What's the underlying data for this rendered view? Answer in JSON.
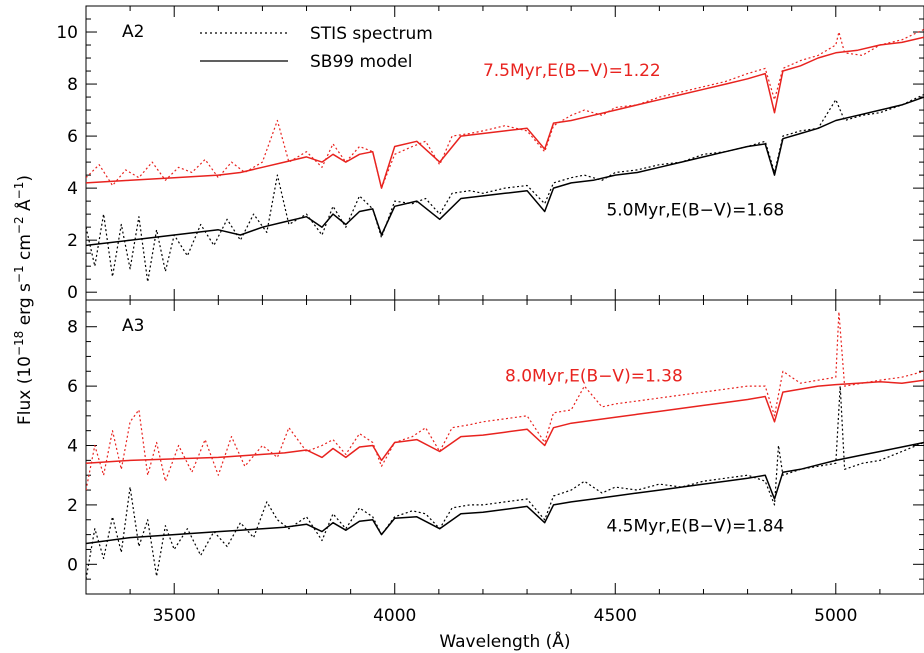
{
  "figure": {
    "xlabel": "Wavelength (Å)",
    "ylabel_parts": {
      "pre": "Flux (10",
      "exp1": "−18",
      "mid1": " erg s",
      "exp2": "−1",
      "mid2": " cm",
      "exp3": "−2",
      "mid3": " Å",
      "exp4": "−1",
      "post": ")"
    },
    "legend": {
      "observed": "STIS spectrum",
      "model": "SB99 model"
    }
  },
  "colors": {
    "red": "#e8231f",
    "black": "#000000"
  },
  "chart_data": [
    {
      "type": "line",
      "panel_label": "A2",
      "xlim": [
        3300,
        5200
      ],
      "ylim": [
        -0.3,
        11
      ],
      "x_ticks": [
        3500,
        4000,
        4500,
        5000
      ],
      "y_ticks": [
        0,
        2,
        4,
        6,
        8,
        10
      ],
      "series": [
        {
          "name": "STIS spectrum",
          "color": "red",
          "style": "dotted",
          "x": [
            3300,
            3330,
            3360,
            3390,
            3420,
            3450,
            3480,
            3510,
            3540,
            3570,
            3600,
            3630,
            3660,
            3700,
            3734,
            3760,
            3800,
            3835,
            3860,
            3889,
            3920,
            3950,
            3970,
            4000,
            4040,
            4070,
            4102,
            4130,
            4170,
            4200,
            4250,
            4300,
            4340,
            4360,
            4400,
            4430,
            4470,
            4500,
            4550,
            4600,
            4650,
            4700,
            4750,
            4800,
            4840,
            4861,
            4880,
            4920,
            4960,
            5000,
            5007,
            5020,
            5060,
            5100,
            5150,
            5200
          ],
          "y": [
            4.4,
            4.9,
            4.1,
            4.7,
            4.4,
            5.0,
            4.3,
            4.8,
            4.6,
            5.1,
            4.4,
            5.0,
            4.6,
            5.0,
            6.6,
            5.0,
            5.4,
            4.8,
            5.7,
            5.0,
            5.6,
            5.4,
            4.0,
            5.3,
            5.6,
            5.8,
            4.9,
            6.0,
            6.1,
            6.2,
            6.4,
            6.2,
            5.4,
            6.4,
            6.8,
            7.0,
            6.8,
            7.1,
            7.2,
            7.5,
            7.7,
            7.9,
            8.1,
            8.4,
            8.6,
            7.4,
            8.6,
            8.9,
            9.1,
            9.5,
            10.0,
            9.2,
            9.1,
            9.5,
            9.7,
            10.1
          ]
        },
        {
          "name": "SB99 model",
          "label": "7.5Myr,E(B−V)=1.22",
          "color": "red",
          "style": "solid",
          "x": [
            3300,
            3400,
            3500,
            3600,
            3650,
            3700,
            3750,
            3800,
            3835,
            3860,
            3889,
            3920,
            3950,
            3970,
            4000,
            4050,
            4102,
            4150,
            4200,
            4250,
            4300,
            4340,
            4360,
            4400,
            4450,
            4500,
            4550,
            4600,
            4650,
            4700,
            4750,
            4800,
            4840,
            4861,
            4880,
            4920,
            4960,
            5000,
            5050,
            5100,
            5150,
            5200
          ],
          "y": [
            4.2,
            4.3,
            4.4,
            4.5,
            4.6,
            4.8,
            5.0,
            5.2,
            5.0,
            5.3,
            5.0,
            5.3,
            5.4,
            4.0,
            5.6,
            5.8,
            5.0,
            6.0,
            6.1,
            6.2,
            6.3,
            5.5,
            6.5,
            6.6,
            6.8,
            7.0,
            7.2,
            7.4,
            7.6,
            7.8,
            8.0,
            8.2,
            8.4,
            6.9,
            8.5,
            8.7,
            9.0,
            9.2,
            9.3,
            9.5,
            9.6,
            9.8
          ]
        },
        {
          "name": "STIS spectrum",
          "color": "black",
          "style": "dotted",
          "x": [
            3300,
            3320,
            3340,
            3360,
            3380,
            3400,
            3420,
            3440,
            3460,
            3480,
            3500,
            3530,
            3560,
            3590,
            3620,
            3650,
            3680,
            3710,
            3734,
            3760,
            3800,
            3835,
            3860,
            3889,
            3920,
            3950,
            3970,
            4000,
            4040,
            4070,
            4102,
            4130,
            4170,
            4200,
            4250,
            4300,
            4340,
            4360,
            4400,
            4430,
            4470,
            4500,
            4550,
            4600,
            4650,
            4700,
            4750,
            4800,
            4840,
            4861,
            4880,
            4920,
            4960,
            5000,
            5020,
            5060,
            5100,
            5150,
            5200
          ],
          "y": [
            2.5,
            1.0,
            3.0,
            0.6,
            2.6,
            0.9,
            2.9,
            0.4,
            2.4,
            0.8,
            2.2,
            1.4,
            2.6,
            1.8,
            2.8,
            2.0,
            3.0,
            2.3,
            4.5,
            2.6,
            3.0,
            2.2,
            3.3,
            2.5,
            3.7,
            3.2,
            2.1,
            3.5,
            3.4,
            3.6,
            3.0,
            3.8,
            3.9,
            3.8,
            4.0,
            4.1,
            3.4,
            4.2,
            4.4,
            4.5,
            4.3,
            4.6,
            4.7,
            4.9,
            5.0,
            5.3,
            5.4,
            5.6,
            5.8,
            4.6,
            6.0,
            6.2,
            6.3,
            7.4,
            6.6,
            6.8,
            6.9,
            7.2,
            7.6
          ]
        },
        {
          "name": "SB99 model",
          "label": "5.0Myr,E(B−V)=1.68",
          "color": "black",
          "style": "solid",
          "x": [
            3300,
            3400,
            3500,
            3600,
            3650,
            3700,
            3750,
            3800,
            3835,
            3860,
            3889,
            3920,
            3950,
            3970,
            4000,
            4050,
            4102,
            4150,
            4200,
            4250,
            4300,
            4340,
            4360,
            4400,
            4450,
            4500,
            4550,
            4600,
            4650,
            4700,
            4750,
            4800,
            4840,
            4861,
            4880,
            4920,
            4960,
            5000,
            5050,
            5100,
            5150,
            5200
          ],
          "y": [
            1.8,
            2.0,
            2.2,
            2.4,
            2.2,
            2.5,
            2.7,
            2.9,
            2.5,
            3.0,
            2.6,
            3.1,
            3.2,
            2.2,
            3.3,
            3.5,
            2.8,
            3.6,
            3.7,
            3.8,
            3.9,
            3.1,
            4.0,
            4.2,
            4.3,
            4.5,
            4.6,
            4.8,
            5.0,
            5.2,
            5.4,
            5.6,
            5.7,
            4.5,
            5.9,
            6.1,
            6.3,
            6.6,
            6.8,
            7.0,
            7.2,
            7.5
          ]
        }
      ],
      "annotations": [
        {
          "text": "7.5Myr,E(B−V)=1.22",
          "color": "red",
          "at": [
            4200,
            8.3
          ]
        },
        {
          "text": "5.0Myr,E(B−V)=1.68",
          "color": "black",
          "at": [
            4480,
            2.95
          ]
        }
      ]
    },
    {
      "type": "line",
      "panel_label": "A3",
      "xlim": [
        3300,
        5200
      ],
      "ylim": [
        -1,
        8.9
      ],
      "x_ticks": [
        3500,
        4000,
        4500,
        5000
      ],
      "y_ticks": [
        0,
        2,
        4,
        6,
        8
      ],
      "series": [
        {
          "name": "STIS spectrum",
          "color": "red",
          "style": "dotted",
          "x": [
            3300,
            3320,
            3340,
            3360,
            3380,
            3400,
            3420,
            3440,
            3460,
            3480,
            3510,
            3540,
            3570,
            3600,
            3630,
            3660,
            3700,
            3734,
            3760,
            3800,
            3835,
            3860,
            3889,
            3920,
            3950,
            3970,
            4000,
            4040,
            4070,
            4102,
            4130,
            4170,
            4200,
            4250,
            4300,
            4340,
            4360,
            4400,
            4430,
            4470,
            4500,
            4550,
            4600,
            4650,
            4700,
            4750,
            4800,
            4840,
            4861,
            4880,
            4920,
            4960,
            5000,
            5007,
            5020,
            5060,
            5100,
            5150,
            5200
          ],
          "y": [
            2.5,
            4.0,
            3.0,
            4.5,
            3.2,
            4.8,
            5.2,
            3.0,
            4.1,
            2.8,
            4.0,
            3.1,
            4.2,
            3.0,
            4.3,
            3.3,
            4.0,
            3.6,
            4.6,
            3.8,
            4.0,
            4.2,
            3.7,
            4.4,
            4.1,
            3.3,
            4.1,
            4.3,
            4.6,
            3.8,
            4.6,
            4.7,
            4.8,
            4.9,
            5.0,
            4.1,
            5.1,
            5.2,
            6.0,
            5.3,
            5.4,
            5.5,
            5.6,
            5.7,
            5.8,
            5.9,
            6.0,
            6.0,
            5.0,
            6.5,
            6.1,
            6.2,
            6.3,
            8.5,
            6.0,
            6.1,
            6.2,
            6.3,
            6.5
          ]
        },
        {
          "name": "SB99 model",
          "label": "8.0Myr,E(B−V)=1.38",
          "color": "red",
          "style": "solid",
          "x": [
            3300,
            3400,
            3500,
            3600,
            3650,
            3700,
            3750,
            3800,
            3835,
            3860,
            3889,
            3920,
            3950,
            3970,
            4000,
            4050,
            4102,
            4150,
            4200,
            4250,
            4300,
            4340,
            4360,
            4400,
            4450,
            4500,
            4550,
            4600,
            4650,
            4700,
            4750,
            4800,
            4840,
            4861,
            4880,
            4920,
            4960,
            5000,
            5050,
            5100,
            5150,
            5200
          ],
          "y": [
            3.4,
            3.5,
            3.55,
            3.6,
            3.65,
            3.7,
            3.75,
            3.85,
            3.6,
            3.9,
            3.6,
            3.95,
            4.0,
            3.5,
            4.1,
            4.2,
            3.8,
            4.3,
            4.35,
            4.45,
            4.55,
            4.0,
            4.6,
            4.75,
            4.85,
            4.95,
            5.05,
            5.15,
            5.25,
            5.35,
            5.45,
            5.55,
            5.65,
            4.8,
            5.8,
            5.9,
            6.0,
            6.05,
            6.1,
            6.15,
            6.1,
            6.2
          ]
        },
        {
          "name": "STIS spectrum",
          "color": "black",
          "style": "dotted",
          "x": [
            3300,
            3320,
            3340,
            3360,
            3380,
            3400,
            3420,
            3440,
            3460,
            3480,
            3500,
            3530,
            3560,
            3590,
            3620,
            3650,
            3680,
            3710,
            3734,
            3760,
            3800,
            3835,
            3860,
            3889,
            3920,
            3950,
            3970,
            4000,
            4040,
            4070,
            4102,
            4130,
            4170,
            4200,
            4250,
            4300,
            4340,
            4360,
            4400,
            4430,
            4470,
            4500,
            4550,
            4600,
            4650,
            4700,
            4750,
            4800,
            4840,
            4861,
            4870,
            4880,
            4920,
            4960,
            5000,
            5010,
            5020,
            5060,
            5100,
            5150,
            5200
          ],
          "y": [
            -0.5,
            1.2,
            0.2,
            1.6,
            0.4,
            2.6,
            0.6,
            1.5,
            -0.4,
            1.3,
            0.5,
            1.2,
            0.3,
            1.1,
            0.6,
            1.4,
            0.9,
            2.1,
            1.5,
            1.2,
            1.6,
            0.8,
            1.7,
            1.2,
            1.9,
            1.6,
            1.0,
            1.6,
            1.8,
            1.7,
            1.2,
            1.9,
            2.0,
            2.0,
            2.1,
            2.2,
            1.5,
            2.3,
            2.5,
            2.8,
            2.4,
            2.6,
            2.5,
            2.7,
            2.6,
            2.8,
            2.9,
            3.0,
            2.8,
            2.0,
            4.0,
            3.0,
            3.2,
            3.3,
            3.4,
            6.0,
            3.2,
            3.4,
            3.5,
            3.8,
            4.1
          ]
        },
        {
          "name": "SB99 model",
          "label": "4.5Myr,E(B−V)=1.84",
          "color": "black",
          "style": "solid",
          "x": [
            3300,
            3400,
            3500,
            3600,
            3650,
            3700,
            3750,
            3800,
            3835,
            3860,
            3889,
            3920,
            3950,
            3970,
            4000,
            4050,
            4102,
            4150,
            4200,
            4250,
            4300,
            4340,
            4360,
            4400,
            4450,
            4500,
            4550,
            4600,
            4650,
            4700,
            4750,
            4800,
            4840,
            4861,
            4880,
            4920,
            4960,
            5000,
            5050,
            5100,
            5150,
            5200
          ],
          "y": [
            0.7,
            0.9,
            1.0,
            1.1,
            1.15,
            1.2,
            1.25,
            1.35,
            1.1,
            1.4,
            1.15,
            1.45,
            1.5,
            1.0,
            1.55,
            1.6,
            1.2,
            1.7,
            1.75,
            1.85,
            1.95,
            1.4,
            2.0,
            2.1,
            2.2,
            2.3,
            2.4,
            2.5,
            2.6,
            2.7,
            2.8,
            2.9,
            3.0,
            2.2,
            3.1,
            3.2,
            3.35,
            3.5,
            3.65,
            3.8,
            3.95,
            4.1
          ]
        }
      ],
      "annotations": [
        {
          "text": "8.0Myr,E(B−V)=1.38",
          "color": "red",
          "at": [
            4250,
            6.15
          ]
        },
        {
          "text": "4.5Myr,E(B−V)=1.84",
          "color": "black",
          "at": [
            4480,
            1.1
          ]
        }
      ]
    }
  ]
}
